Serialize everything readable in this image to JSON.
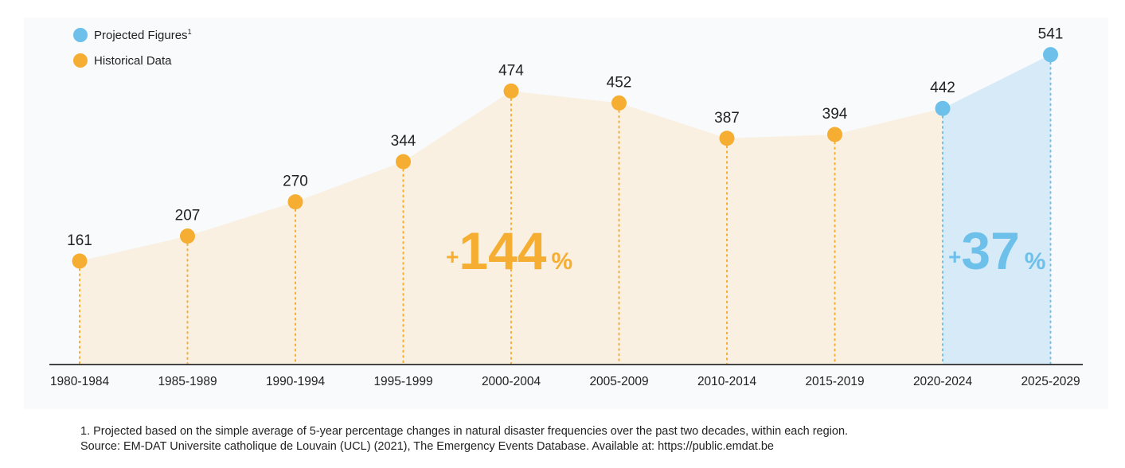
{
  "legend": {
    "projected_label": "Projected Figures",
    "projected_sup": "1",
    "historical_label": "Historical Data"
  },
  "colors": {
    "historical": "#f5ae32",
    "projected": "#6dc0ea",
    "historical_fill": "#f9f0e2",
    "projected_fill": "#d6ebf7",
    "axis": "#444444"
  },
  "chart_data": {
    "type": "area",
    "categories": [
      "1980-1984",
      "1985-1989",
      "1990-1994",
      "1995-1999",
      "2000-2004",
      "2005-2009",
      "2010-2014",
      "2015-2019",
      "2020-2024",
      "2025-2029"
    ],
    "series": [
      {
        "name": "Historical Data",
        "values": [
          161,
          207,
          270,
          344,
          474,
          452,
          387,
          394,
          null,
          null
        ]
      },
      {
        "name": "Projected Figures",
        "values": [
          null,
          null,
          null,
          null,
          null,
          null,
          null,
          null,
          442,
          541
        ]
      }
    ],
    "data_labels": [
      "161",
      "207",
      "270",
      "344",
      "474",
      "452",
      "387",
      "394",
      "442",
      "541"
    ],
    "annotations": [
      {
        "sign": "+",
        "number": "144",
        "unit": "%",
        "series": "Historical Data"
      },
      {
        "sign": "+",
        "number": "37",
        "unit": "%",
        "series": "Projected Figures"
      }
    ],
    "ylim": [
      0,
      560
    ],
    "grid": false,
    "legend_position": "top-left"
  },
  "footnote": {
    "line1": "1. Projected based on the simple average of 5-year percentage changes in natural disaster frequencies over the past two decades, within each region.",
    "line2": "Source: EM-DAT Universite  catholique de Louvain (UCL) (2021), The Emergency Events Database. Available at: https://public.emdat.be"
  }
}
